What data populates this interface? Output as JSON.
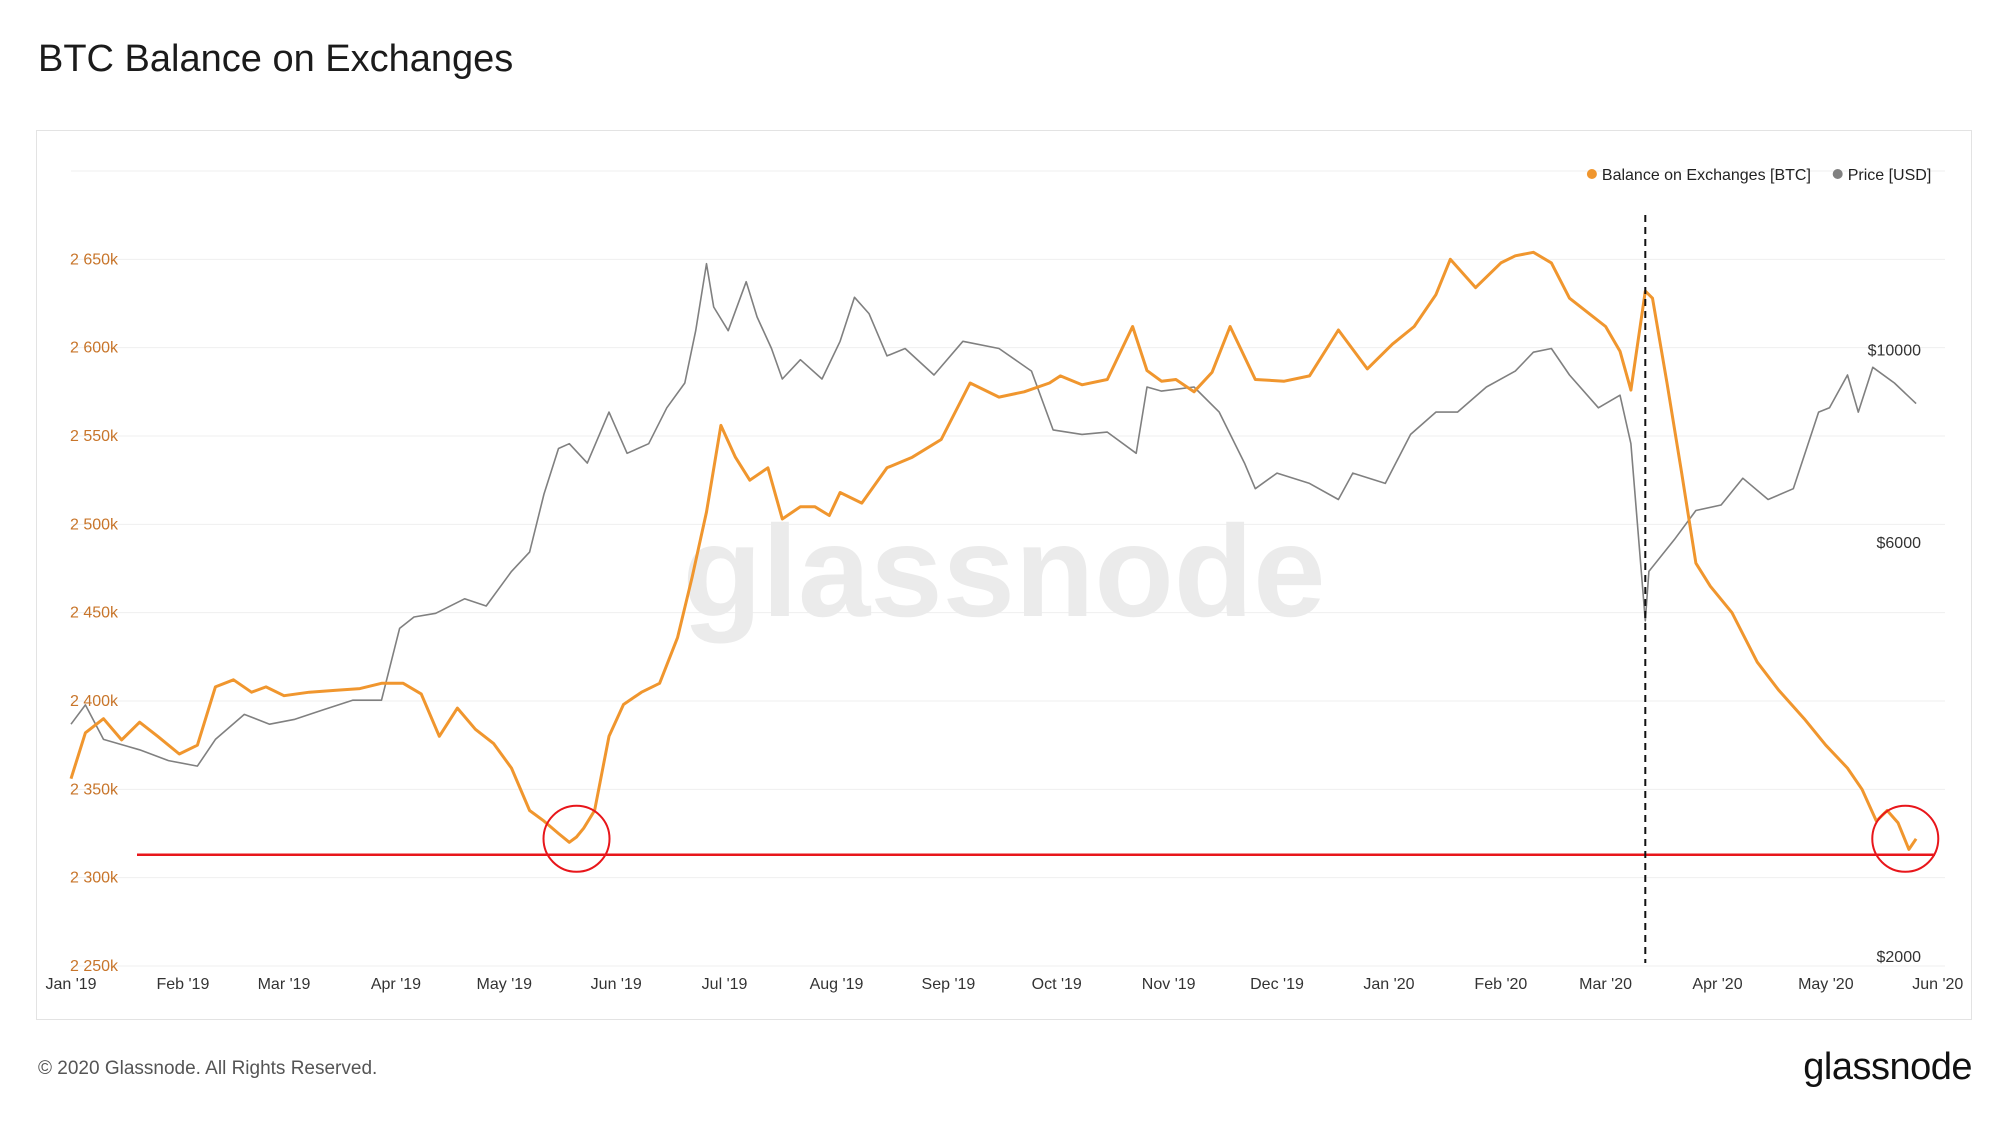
{
  "title": "BTC Balance on Exchanges",
  "footer": "© 2020 Glassnode. All Rights Reserved.",
  "logo": "glassnode",
  "watermark": "glassnode",
  "legend": [
    {
      "label": "Balance on Exchanges [BTC]",
      "color": "#f0962e"
    },
    {
      "label": "Price [USD]",
      "color": "#808080"
    }
  ],
  "chart_data": {
    "type": "line",
    "grid": "horizontal",
    "legend_position": "top-right",
    "x_ticks": [
      "Jan '19",
      "Feb '19",
      "Mar '19",
      "Apr '19",
      "May '19",
      "Jun '19",
      "Jul '19",
      "Aug '19",
      "Sep '19",
      "Oct '19",
      "Nov '19",
      "Dec '19",
      "Jan '20",
      "Feb '20",
      "Mar '20",
      "Apr '20",
      "May '20",
      "Jun '20"
    ],
    "x_range": [
      "2019-01-01",
      "2020-06-03"
    ],
    "y_left": {
      "ticks": [
        "2 250k",
        "2 300k",
        "2 350k",
        "2 400k",
        "2 450k",
        "2 500k",
        "2 550k",
        "2 600k",
        "2 650k"
      ],
      "range": [
        2250000,
        2700000
      ],
      "color": "#c8752a"
    },
    "y_right": {
      "ticks": [
        "$2000",
        "$6000",
        "$10000"
      ],
      "values": [
        2000,
        6000,
        10000
      ],
      "scale": "log",
      "range": [
        2000,
        16500
      ],
      "color": "#333333"
    },
    "series": [
      {
        "name": "Balance on Exchanges [BTC]",
        "axis": "left",
        "color": "#f0962e",
        "x": [
          "2019-01-01",
          "2019-01-05",
          "2019-01-10",
          "2019-01-15",
          "2019-01-20",
          "2019-01-25",
          "2019-01-31",
          "2019-02-05",
          "2019-02-10",
          "2019-02-15",
          "2019-02-20",
          "2019-02-24",
          "2019-03-01",
          "2019-03-08",
          "2019-03-15",
          "2019-03-22",
          "2019-03-28",
          "2019-04-03",
          "2019-04-08",
          "2019-04-13",
          "2019-04-18",
          "2019-04-23",
          "2019-04-28",
          "2019-05-03",
          "2019-05-08",
          "2019-05-12",
          "2019-05-16",
          "2019-05-19",
          "2019-05-21",
          "2019-05-23",
          "2019-05-26",
          "2019-05-30",
          "2019-06-03",
          "2019-06-08",
          "2019-06-13",
          "2019-06-18",
          "2019-06-22",
          "2019-06-26",
          "2019-06-30",
          "2019-07-04",
          "2019-07-08",
          "2019-07-13",
          "2019-07-17",
          "2019-07-22",
          "2019-07-26",
          "2019-07-30",
          "2019-08-02",
          "2019-08-08",
          "2019-08-15",
          "2019-08-22",
          "2019-08-30",
          "2019-09-07",
          "2019-09-15",
          "2019-09-22",
          "2019-09-29",
          "2019-10-02",
          "2019-10-08",
          "2019-10-15",
          "2019-10-22",
          "2019-10-26",
          "2019-10-30",
          "2019-11-03",
          "2019-11-08",
          "2019-11-13",
          "2019-11-18",
          "2019-11-25",
          "2019-12-03",
          "2019-12-10",
          "2019-12-18",
          "2019-12-26",
          "2020-01-02",
          "2020-01-08",
          "2020-01-14",
          "2020-01-18",
          "2020-01-25",
          "2020-02-01",
          "2020-02-05",
          "2020-02-10",
          "2020-02-15",
          "2020-02-20",
          "2020-02-25",
          "2020-03-01",
          "2020-03-05",
          "2020-03-08",
          "2020-03-12",
          "2020-03-14",
          "2020-03-18",
          "2020-03-22",
          "2020-03-26",
          "2020-03-30",
          "2020-04-05",
          "2020-04-12",
          "2020-04-18",
          "2020-04-25",
          "2020-05-01",
          "2020-05-07",
          "2020-05-11",
          "2020-05-15",
          "2020-05-18",
          "2020-05-21",
          "2020-05-24",
          "2020-05-26"
        ],
        "values": [
          2356000,
          2382000,
          2390000,
          2378000,
          2388000,
          2380000,
          2370000,
          2375000,
          2408000,
          2412000,
          2405000,
          2408000,
          2403000,
          2405000,
          2406000,
          2407000,
          2410000,
          2410000,
          2404000,
          2380000,
          2396000,
          2384000,
          2376000,
          2362000,
          2338000,
          2332000,
          2325000,
          2320000,
          2323000,
          2328000,
          2338000,
          2380000,
          2398000,
          2405000,
          2410000,
          2436000,
          2470000,
          2507000,
          2556000,
          2538000,
          2525000,
          2532000,
          2503000,
          2510000,
          2510000,
          2505000,
          2518000,
          2512000,
          2532000,
          2538000,
          2548000,
          2580000,
          2572000,
          2575000,
          2580000,
          2584000,
          2579000,
          2582000,
          2612000,
          2587000,
          2581000,
          2582000,
          2575000,
          2586000,
          2612000,
          2582000,
          2581000,
          2584000,
          2610000,
          2588000,
          2602000,
          2612000,
          2630000,
          2650000,
          2634000,
          2648000,
          2652000,
          2654000,
          2648000,
          2628000,
          2620000,
          2612000,
          2598000,
          2576000,
          2632000,
          2628000,
          2580000,
          2530000,
          2478000,
          2465000,
          2450000,
          2422000,
          2406000,
          2390000,
          2375000,
          2362000,
          2350000,
          2332000,
          2338000,
          2331000,
          2316000,
          2322000
        ]
      },
      {
        "name": "Price [USD]",
        "axis": "right",
        "color": "#808080",
        "x": [
          "2019-01-01",
          "2019-01-05",
          "2019-01-10",
          "2019-01-15",
          "2019-01-20",
          "2019-01-28",
          "2019-02-05",
          "2019-02-10",
          "2019-02-18",
          "2019-02-25",
          "2019-03-04",
          "2019-03-12",
          "2019-03-20",
          "2019-03-28",
          "2019-04-02",
          "2019-04-06",
          "2019-04-12",
          "2019-04-20",
          "2019-04-26",
          "2019-05-03",
          "2019-05-08",
          "2019-05-12",
          "2019-05-16",
          "2019-05-19",
          "2019-05-24",
          "2019-05-30",
          "2019-06-04",
          "2019-06-10",
          "2019-06-15",
          "2019-06-20",
          "2019-06-23",
          "2019-06-26",
          "2019-06-28",
          "2019-07-02",
          "2019-07-07",
          "2019-07-10",
          "2019-07-14",
          "2019-07-17",
          "2019-07-22",
          "2019-07-28",
          "2019-08-02",
          "2019-08-06",
          "2019-08-10",
          "2019-08-15",
          "2019-08-20",
          "2019-08-28",
          "2019-09-05",
          "2019-09-15",
          "2019-09-24",
          "2019-09-30",
          "2019-10-08",
          "2019-10-15",
          "2019-10-23",
          "2019-10-26",
          "2019-10-30",
          "2019-11-08",
          "2019-11-15",
          "2019-11-22",
          "2019-11-25",
          "2019-12-01",
          "2019-12-10",
          "2019-12-18",
          "2019-12-22",
          "2019-12-31",
          "2020-01-07",
          "2020-01-14",
          "2020-01-20",
          "2020-01-28",
          "2020-02-05",
          "2020-02-10",
          "2020-02-15",
          "2020-02-20",
          "2020-02-28",
          "2020-03-05",
          "2020-03-08",
          "2020-03-12",
          "2020-03-13",
          "2020-03-20",
          "2020-03-26",
          "2020-04-02",
          "2020-04-08",
          "2020-04-15",
          "2020-04-22",
          "2020-04-29",
          "2020-05-02",
          "2020-05-07",
          "2020-05-10",
          "2020-05-14",
          "2020-05-20",
          "2020-05-26"
        ],
        "values": [
          3800,
          4000,
          3650,
          3600,
          3550,
          3450,
          3400,
          3650,
          3900,
          3800,
          3850,
          3950,
          4050,
          4050,
          4900,
          5050,
          5100,
          5300,
          5200,
          5700,
          6000,
          7000,
          7900,
          8000,
          7600,
          8700,
          7800,
          8000,
          8800,
          9400,
          10800,
          12900,
          11500,
          10800,
          12300,
          11200,
          10300,
          9500,
          10000,
          9500,
          10500,
          11800,
          11300,
          10100,
          10300,
          9600,
          10500,
          10300,
          9700,
          8300,
          8200,
          8250,
          7800,
          9300,
          9200,
          9300,
          8700,
          7600,
          7100,
          7400,
          7200,
          6900,
          7400,
          7200,
          8200,
          8700,
          8700,
          9300,
          9700,
          10200,
          10300,
          9600,
          8800,
          9100,
          8000,
          5000,
          5700,
          6200,
          6700,
          6800,
          7300,
          6900,
          7100,
          8700,
          8800,
          9600,
          8700,
          9800,
          9400,
          8900
        ]
      }
    ],
    "annotations": [
      {
        "type": "horizontal-line",
        "axis": "left",
        "value": 2313000,
        "color": "#e8161b"
      },
      {
        "type": "vertical-dashed-line",
        "x": "2020-03-12",
        "color": "#111111"
      },
      {
        "type": "circle",
        "x": "2019-05-21",
        "y": 2322000,
        "color": "#e8161b"
      },
      {
        "type": "circle",
        "x": "2020-05-23",
        "y": 2322000,
        "color": "#e8161b"
      }
    ]
  }
}
